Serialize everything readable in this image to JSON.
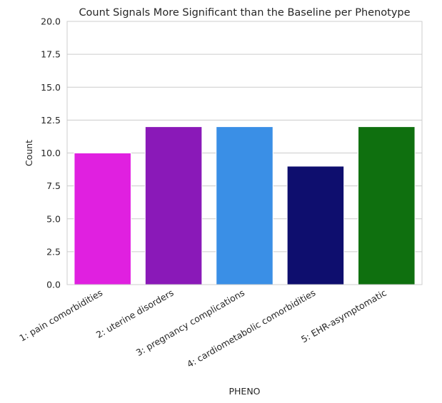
{
  "chart_data": {
    "type": "bar",
    "title": "Count Signals More Significant than the Baseline per Phenotype",
    "xlabel": "PHENO",
    "ylabel": "Count",
    "categories": [
      "1: pain comorbidities",
      "2: uterine disorders",
      "3: pregnancy complications",
      "4: cardiometabolic comorbidities",
      "5: EHR-asymptomatic"
    ],
    "values": [
      10,
      12,
      12,
      9,
      12
    ],
    "colors": [
      "#e020e0",
      "#8a19b8",
      "#3a8fe6",
      "#0e0e6e",
      "#0f700f"
    ],
    "ylim": [
      0,
      20
    ],
    "yticks": [
      "0.0",
      "2.5",
      "5.0",
      "7.5",
      "10.0",
      "12.5",
      "15.0",
      "17.5",
      "20.0"
    ],
    "grid": true,
    "grid_axis": "y",
    "legend": "none"
  }
}
